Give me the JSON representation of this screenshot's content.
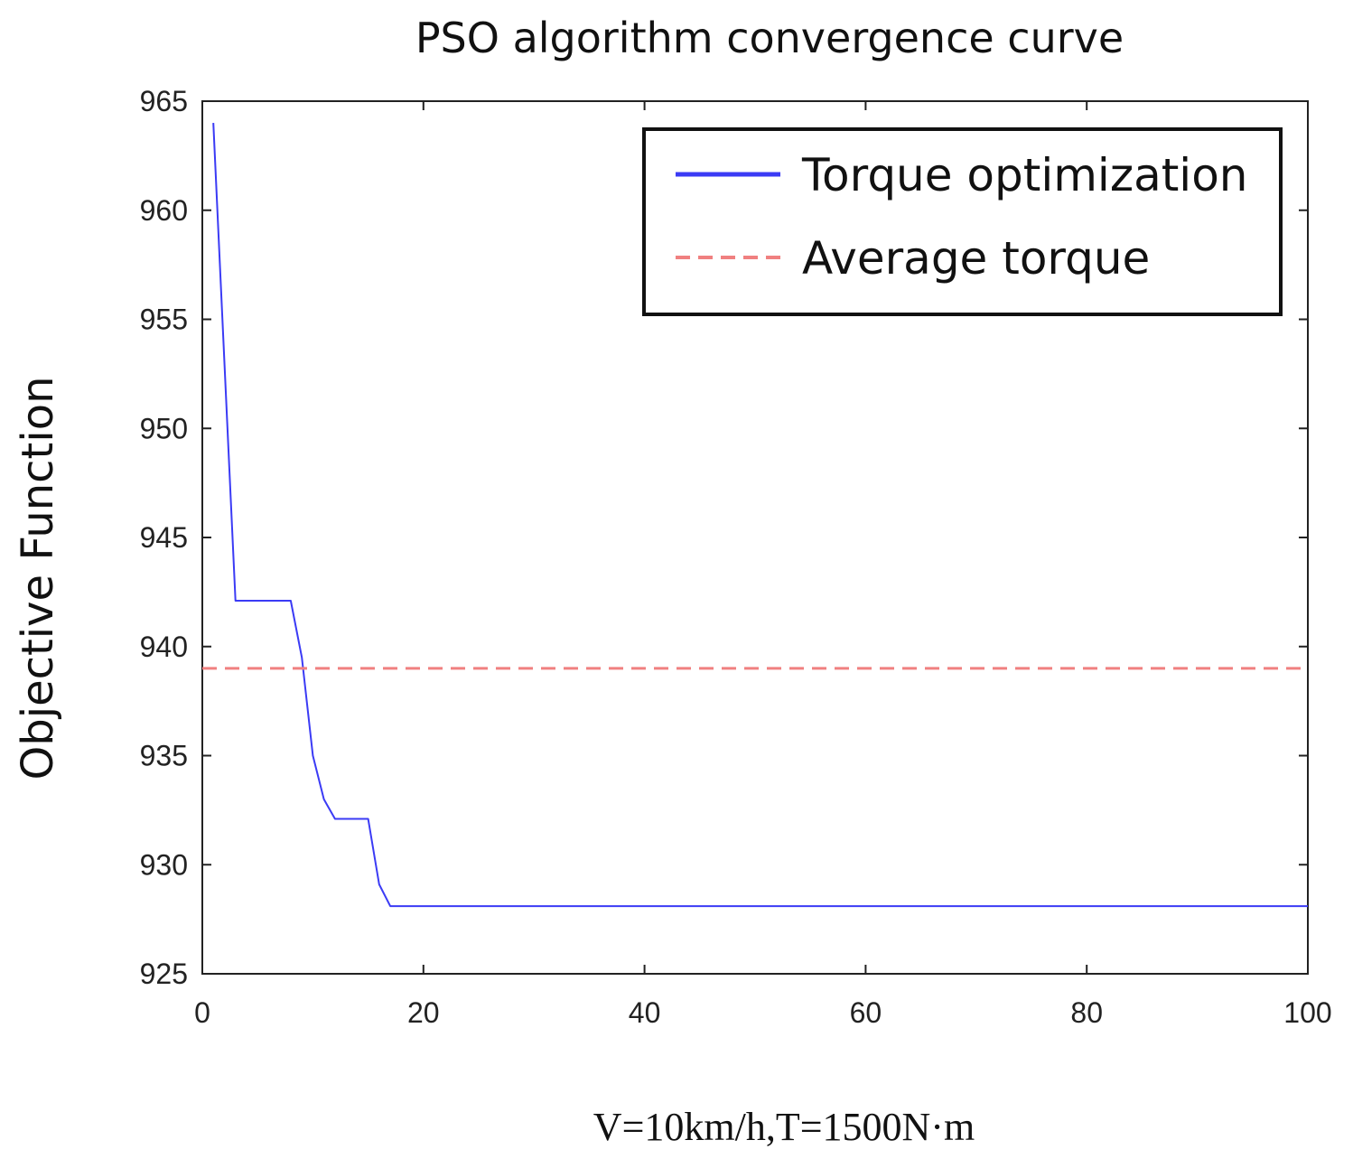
{
  "chart_data": {
    "type": "line",
    "title": "PSO algorithm convergence curve",
    "xlabel": "",
    "ylabel": "Objective Function",
    "caption": "V=10km/h,T=1500N·m",
    "xlim": [
      0,
      100
    ],
    "ylim": [
      925,
      965
    ],
    "xticks": [
      0,
      20,
      40,
      60,
      80,
      100
    ],
    "yticks": [
      925,
      930,
      935,
      940,
      945,
      950,
      955,
      960,
      965
    ],
    "grid": false,
    "legend_position": "top-right",
    "series": [
      {
        "name": "Torque optimization",
        "color": "#3b3bf5",
        "style": "solid",
        "x": [
          1,
          2,
          3,
          4,
          5,
          6,
          7,
          8,
          9,
          10,
          11,
          12,
          13,
          14,
          15,
          16,
          17,
          20,
          30,
          40,
          50,
          60,
          70,
          80,
          90,
          100
        ],
        "y": [
          964,
          953,
          942.1,
          942.1,
          942.1,
          942.1,
          942.1,
          942.1,
          939.5,
          935,
          933,
          932.1,
          932.1,
          932.1,
          932.1,
          929.1,
          928.1,
          928.1,
          928.1,
          928.1,
          928.1,
          928.1,
          928.1,
          928.1,
          928.1,
          928.1
        ]
      },
      {
        "name": "Average torque",
        "color": "#f08080",
        "style": "dashed",
        "x": [
          0,
          100
        ],
        "y": [
          939,
          939
        ]
      }
    ]
  }
}
